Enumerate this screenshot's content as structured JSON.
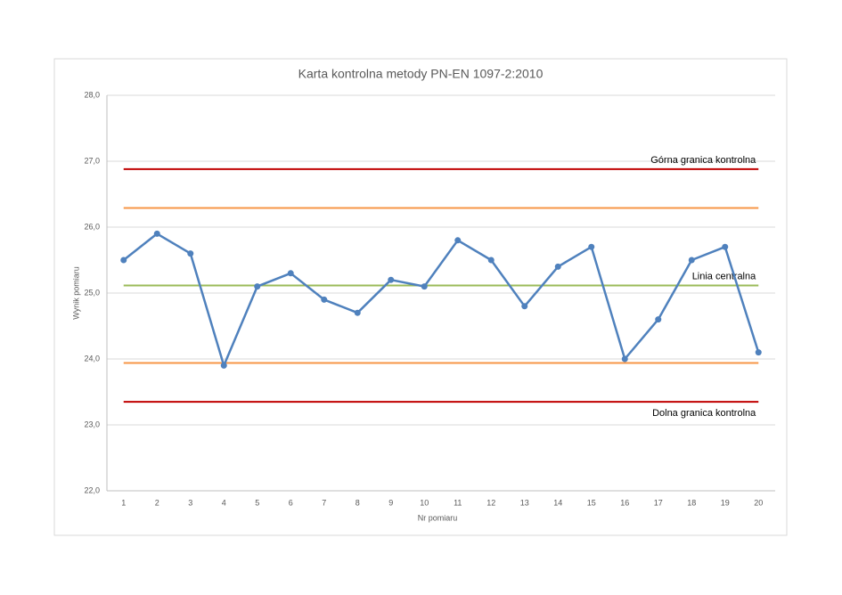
{
  "chart_data": {
    "type": "line",
    "title": "Karta kontrolna metody PN-EN 1097-2:2010",
    "x_label": "Nr pomiaru",
    "y_label": "Wynik pomiaru",
    "categories": [
      "1",
      "2",
      "3",
      "4",
      "5",
      "6",
      "7",
      "8",
      "9",
      "10",
      "11",
      "12",
      "13",
      "14",
      "15",
      "16",
      "17",
      "18",
      "19",
      "20"
    ],
    "values": [
      25.5,
      25.9,
      25.6,
      23.9,
      25.1,
      25.3,
      24.9,
      24.7,
      25.2,
      25.1,
      25.8,
      25.5,
      24.8,
      25.4,
      25.7,
      24.0,
      24.6,
      25.5,
      25.7,
      24.1
    ],
    "color": "#4f81bd",
    "ylim": [
      22,
      28
    ],
    "yticks": [
      {
        "value": 22,
        "label": "22,0"
      },
      {
        "value": 23,
        "label": "23,0"
      },
      {
        "value": 24,
        "label": "24,0"
      },
      {
        "value": 25,
        "label": "25,0"
      },
      {
        "value": 26,
        "label": "26,0"
      },
      {
        "value": 27,
        "label": "27,0"
      },
      {
        "value": 28,
        "label": "28,0"
      }
    ],
    "grid": true,
    "reference_lines": [
      {
        "label": "Górna granica kontrolna",
        "value": 26.88,
        "color": "#c00000",
        "label_position": "above"
      },
      {
        "value": 26.29,
        "color": "#f79646"
      },
      {
        "label": "Linia centralna",
        "value": 25.115,
        "color": "#9bbb59",
        "label_position": "above"
      },
      {
        "value": 23.94,
        "color": "#f79646"
      },
      {
        "label": "Dolna granica kontrolna",
        "value": 23.35,
        "color": "#c00000",
        "label_position": "below"
      }
    ]
  }
}
